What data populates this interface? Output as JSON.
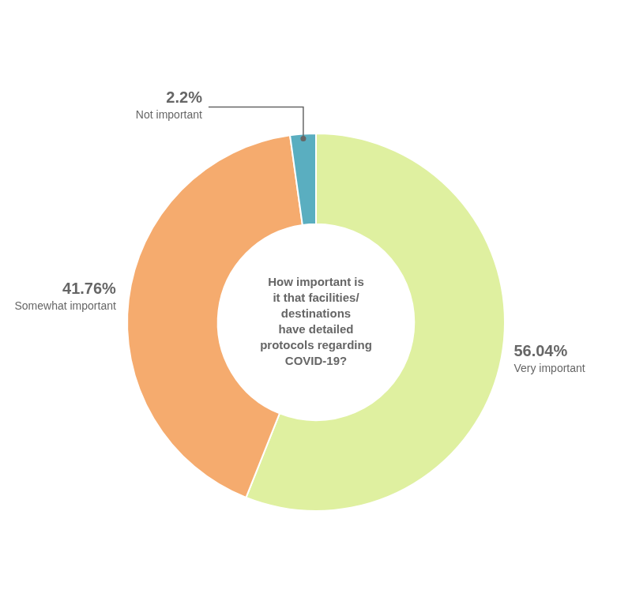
{
  "chart_data": {
    "type": "doughnut",
    "title": "How important is\nit that facilities/\ndestinations\nhave detailed\nprotocols regarding\nCOVID-19?",
    "categories": [
      "Very important",
      "Somewhat important",
      "Not important"
    ],
    "values": [
      56.04,
      41.76,
      2.2
    ],
    "value_labels": [
      "56.04%",
      "41.76%",
      "2.2%"
    ],
    "colors": [
      "#dff0a0",
      "#f5ab6e",
      "#5aaec0"
    ],
    "data_labels": true
  }
}
